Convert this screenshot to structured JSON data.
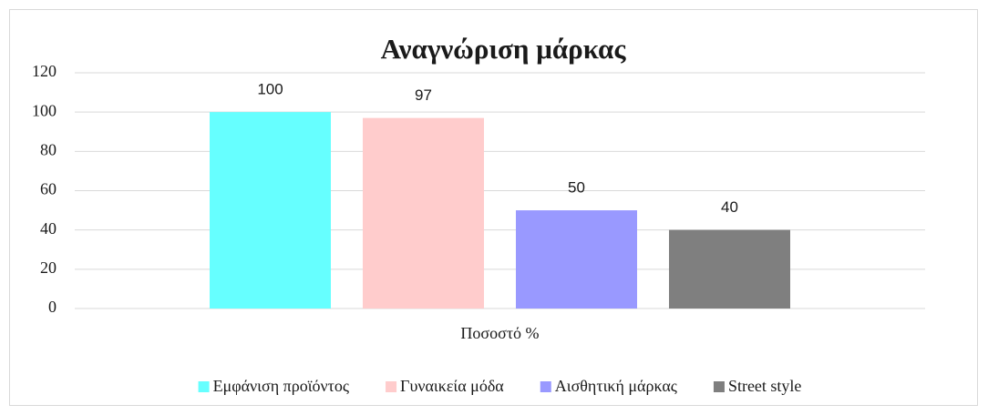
{
  "chart_data": {
    "type": "bar",
    "title": "Αναγνώριση μάρκας",
    "categories": [
      "Ποσοστό %"
    ],
    "series": [
      {
        "name": "Εμφάνιση προϊόντος",
        "color": "#66ffff",
        "values": [
          100
        ]
      },
      {
        "name": "Γυναικεία μόδα",
        "color": "#ffcccc",
        "values": [
          97
        ]
      },
      {
        "name": "Αισθητική μάρκας",
        "color": "#9999ff",
        "values": [
          50
        ]
      },
      {
        "name": "Street style",
        "color": "#7f7f7f",
        "values": [
          40
        ]
      }
    ],
    "ylim": [
      0,
      120
    ],
    "yticks": [
      0,
      20,
      40,
      60,
      80,
      100,
      120
    ],
    "grid": true,
    "legend": "bottom"
  }
}
